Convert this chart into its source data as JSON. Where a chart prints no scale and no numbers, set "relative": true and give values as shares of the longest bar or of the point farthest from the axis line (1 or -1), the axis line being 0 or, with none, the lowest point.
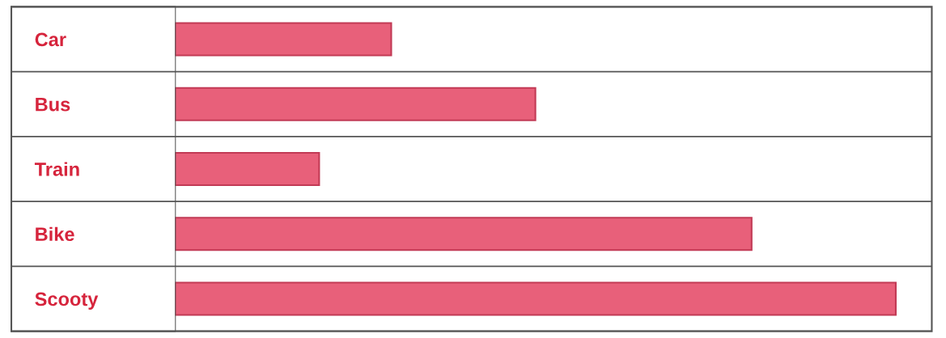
{
  "chart_data": {
    "type": "bar",
    "orientation": "horizontal",
    "relative": true,
    "categories": [
      "Car",
      "Bus",
      "Train",
      "Bike",
      "Scooty"
    ],
    "values": [
      0.3,
      0.5,
      0.2,
      0.8,
      1
    ],
    "color": "#e8607a",
    "grid": false,
    "legend": false,
    "tick_labels": "y"
  }
}
